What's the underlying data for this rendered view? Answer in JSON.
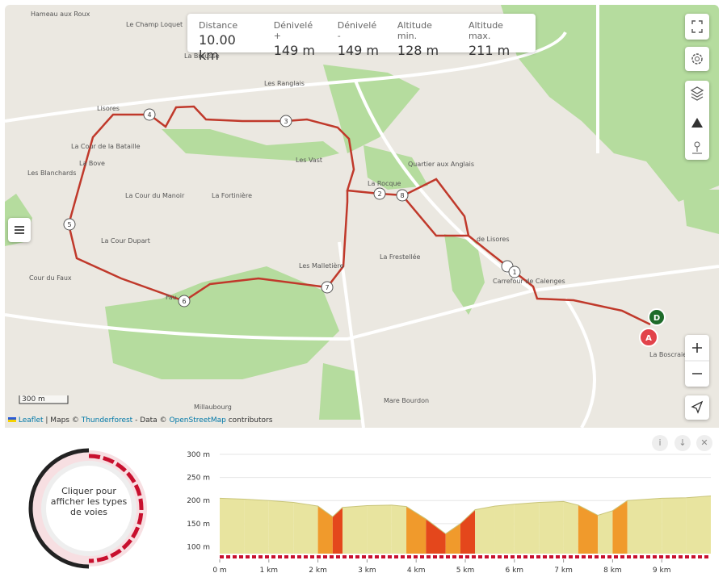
{
  "stats": [
    {
      "label": "Distance",
      "value": "10.00 km"
    },
    {
      "label": "Dénivelé +",
      "value": "149 m"
    },
    {
      "label": "Dénivelé -",
      "value": "149 m"
    },
    {
      "label": "Altitude min.",
      "value": "128 m"
    },
    {
      "label": "Altitude max.",
      "value": "211 m"
    }
  ],
  "places": [
    "Hameau aux Roux",
    "Le Champ Loquet",
    "La Brousse",
    "Les Ranglais",
    "Lisores",
    "La Cour de la Bataille",
    "La Bove",
    "Les Blanchards",
    "Les Vast",
    "Quartier aux Anglais",
    "La Rocque",
    "La Cour du Manoir",
    "La Fortinière",
    "La Cour Dupart",
    "Cour du Faux",
    "Les Malletière",
    "La Frestellée",
    "de Lisores",
    "Carrefour de Calenges",
    "Fau",
    "La Boscraie",
    "Millaubourg",
    "Mare Bourdon"
  ],
  "markers": [
    "1",
    "2",
    "3",
    "4",
    "5",
    "6",
    "7",
    "8"
  ],
  "start": "A",
  "end": "D",
  "scale": "300 m",
  "attribution": {
    "leaflet": "Leaflet",
    "maps": "| Maps ©",
    "thunderforest": "Thunderforest",
    "data": "- Data ©",
    "osm": "OpenStreetMap",
    "contributors": "contributors"
  },
  "donut_text": "Cliquer pour afficher les types de voies",
  "elevation": {
    "x": [
      0,
      0.5,
      1,
      1.5,
      2,
      2.3,
      2.5,
      3,
      3.5,
      3.8,
      4.2,
      4.6,
      4.9,
      5.2,
      5.6,
      6,
      6.5,
      7,
      7.3,
      7.7,
      8,
      8.3,
      9,
      9.5,
      10
    ],
    "values": [
      205,
      203,
      200,
      196,
      188,
      165,
      185,
      189,
      190,
      187,
      160,
      128,
      150,
      180,
      188,
      192,
      196,
      198,
      190,
      168,
      178,
      200,
      205,
      206,
      210
    ],
    "xlim": [
      0,
      10
    ],
    "ylim": [
      85,
      300
    ],
    "yticks": [
      {
        "value": 300,
        "label": "300 m"
      },
      {
        "value": 250,
        "label": "250 m"
      },
      {
        "value": 200,
        "label": "200 m"
      },
      {
        "value": 150,
        "label": "150 m"
      },
      {
        "value": 100,
        "label": "100 m"
      }
    ],
    "xticks": [
      {
        "value": 0,
        "label": "0 m"
      },
      {
        "value": 1,
        "label": "1 km"
      },
      {
        "value": 2,
        "label": "2 km"
      },
      {
        "value": 3,
        "label": "3 km"
      },
      {
        "value": 4,
        "label": "4 km"
      },
      {
        "value": 5,
        "label": "5 km"
      },
      {
        "value": 6,
        "label": "6 km"
      },
      {
        "value": 7,
        "label": "7 km"
      },
      {
        "value": 8,
        "label": "8 km"
      },
      {
        "value": 9,
        "label": "9 km"
      }
    ]
  }
}
